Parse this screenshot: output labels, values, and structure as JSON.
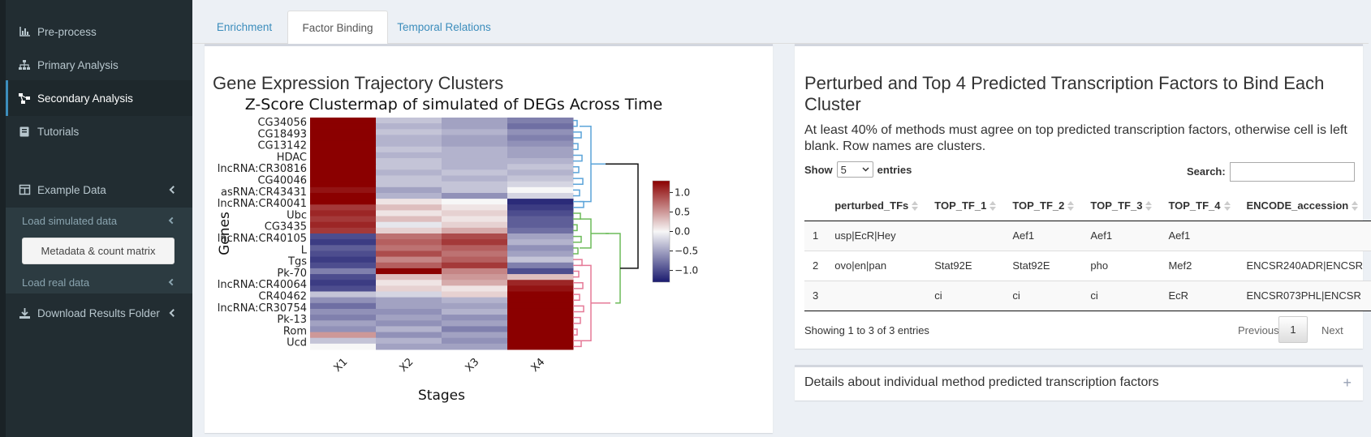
{
  "sidebar": {
    "items": [
      {
        "label": "Pre-process",
        "icon": "chart-icon"
      },
      {
        "label": "Primary Analysis",
        "icon": "sitemap-icon"
      },
      {
        "label": "Secondary Analysis",
        "icon": "network-icon"
      },
      {
        "label": "Tutorials",
        "icon": "book-icon"
      },
      {
        "label": "Example Data",
        "icon": "table-icon"
      },
      {
        "label": "Download Results Folder",
        "icon": "download-icon"
      }
    ],
    "sub": {
      "load_simulated": "Load simulated data",
      "metadata_button": "Metadata & count matrix",
      "load_real": "Load real data"
    }
  },
  "tabs": [
    "Enrichment",
    "Factor Binding",
    "Temporal Relations"
  ],
  "left_panel": {
    "title": "Gene Expression Trajectory Clusters"
  },
  "chart_data": {
    "type": "heatmap",
    "title": "Z-Score Clustermap of simulated of DEGs Across Time",
    "xlabel": "Stages",
    "ylabel": "Genes",
    "x": [
      "X1",
      "X2",
      "X3",
      "X4"
    ],
    "row_labels_visible": [
      "CG34056",
      "CG18493",
      "CG13142",
      "HDAC",
      "lncRNA:CR30816",
      "CG40046",
      "asRNA:CR43431",
      "lncRNA:CR40041",
      "Ubc",
      "CG3435",
      "lncRNA:CR40105",
      "L",
      "Tgs",
      "Pk-70",
      "lncRNA:CR40064",
      "CR40462",
      "lncRNA:CR30754",
      "Pk-13",
      "Rom",
      "Ucd"
    ],
    "colorbar": {
      "ticks": [
        1.0,
        0.5,
        0.0,
        -0.5,
        -1.0
      ],
      "tick_labels": [
        "1.0",
        "0.5",
        "0.0",
        "−0.5",
        "−1.0"
      ],
      "min_color": "#1a1a6e",
      "mid_color": "#f7f7f7",
      "max_color": "#8b0000"
    },
    "clusters": [
      {
        "color": "#5ba4d9",
        "rows": [
          0,
          16
        ]
      },
      {
        "color": "#6dbb5a",
        "rows": [
          16,
          24
        ]
      },
      {
        "color": "#e57a97",
        "rows": [
          24,
          40
        ]
      }
    ],
    "n_rows": 40,
    "values": [
      [
        1.4,
        -0.3,
        -0.5,
        -0.7
      ],
      [
        1.4,
        -0.4,
        -0.5,
        -0.8
      ],
      [
        1.4,
        -0.3,
        -0.4,
        -0.6
      ],
      [
        1.4,
        -0.4,
        -0.5,
        -0.7
      ],
      [
        1.3,
        -0.4,
        -0.5,
        -0.6
      ],
      [
        1.4,
        -0.3,
        -0.4,
        -0.5
      ],
      [
        1.3,
        -0.4,
        -0.4,
        -0.5
      ],
      [
        1.4,
        -0.3,
        -0.4,
        -0.4
      ],
      [
        1.3,
        -0.3,
        -0.4,
        -0.3
      ],
      [
        1.4,
        -0.4,
        -0.3,
        -0.4
      ],
      [
        1.3,
        -0.3,
        -0.4,
        -0.3
      ],
      [
        1.3,
        -0.3,
        -0.3,
        -0.2
      ],
      [
        1.2,
        -0.5,
        -0.3,
        0.0
      ],
      [
        1.3,
        -0.4,
        -0.6,
        -0.2
      ],
      [
        1.3,
        0.1,
        0.0,
        -1.2
      ],
      [
        1.0,
        0.3,
        0.1,
        -1.1
      ],
      [
        1.1,
        0.1,
        0.2,
        -1.0
      ],
      [
        1.0,
        0.3,
        0.1,
        -0.9
      ],
      [
        1.1,
        -0.1,
        0.2,
        -0.9
      ],
      [
        1.0,
        0.2,
        0.4,
        -0.8
      ],
      [
        -1.0,
        0.7,
        0.9,
        -0.5
      ],
      [
        -1.1,
        0.8,
        1.0,
        -0.4
      ],
      [
        -0.9,
        0.7,
        0.8,
        -0.6
      ],
      [
        -1.0,
        0.9,
        0.7,
        -0.5
      ],
      [
        -1.1,
        0.6,
        0.8,
        -0.3
      ],
      [
        -1.0,
        0.8,
        1.0,
        -0.7
      ],
      [
        -0.7,
        1.5,
        0.6,
        -1.0
      ],
      [
        -1.0,
        0.3,
        0.5,
        0.3
      ],
      [
        -1.1,
        0.1,
        0.4,
        1.1
      ],
      [
        -1.0,
        0.2,
        0.1,
        1.2
      ],
      [
        -0.3,
        -0.2,
        0.2,
        1.4
      ],
      [
        -0.6,
        -0.5,
        -0.4,
        1.4
      ],
      [
        -0.8,
        -0.5,
        -0.5,
        1.4
      ],
      [
        -0.6,
        -0.6,
        -0.4,
        1.4
      ],
      [
        -0.7,
        -0.5,
        -0.6,
        1.4
      ],
      [
        -0.5,
        -0.6,
        -0.5,
        1.4
      ],
      [
        -0.6,
        -0.4,
        -0.7,
        1.4
      ],
      [
        0.5,
        -0.6,
        -0.5,
        1.4
      ],
      [
        -0.3,
        -0.4,
        -0.6,
        1.4
      ],
      [
        0.0,
        -0.5,
        -0.5,
        1.4
      ]
    ]
  },
  "right_panel": {
    "title": "Perturbed and Top 4 Predicted Transcription Factors to Bind Each Cluster",
    "description": "At least 40% of methods must agree on top predicted transcription factors, otherwise cell is left blank. Row names are clusters.",
    "show_label": "Show",
    "entries_label": "entries",
    "page_size": "5",
    "search_label": "Search:",
    "columns": [
      "",
      "perturbed_TFs",
      "TOP_TF_1",
      "TOP_TF_2",
      "TOP_TF_3",
      "TOP_TF_4",
      "ENCODE_accession"
    ],
    "rows": [
      [
        "1",
        "usp|EcR|Hey",
        "",
        "Aef1",
        "Aef1",
        "Aef1",
        ""
      ],
      [
        "2",
        "ovo|en|pan",
        "Stat92E",
        "Stat92E",
        "pho",
        "Mef2",
        "ENCSR240ADR|ENCSR"
      ],
      [
        "3",
        "",
        "ci",
        "ci",
        "ci",
        "EcR",
        "ENCSR073PHL|ENCSR"
      ]
    ],
    "info": "Showing 1 to 3 of 3 entries",
    "prev": "Previous",
    "page": "1",
    "next": "Next"
  },
  "details_panel": {
    "title": "Details about individual method predicted transcription factors",
    "toggle": "+"
  }
}
